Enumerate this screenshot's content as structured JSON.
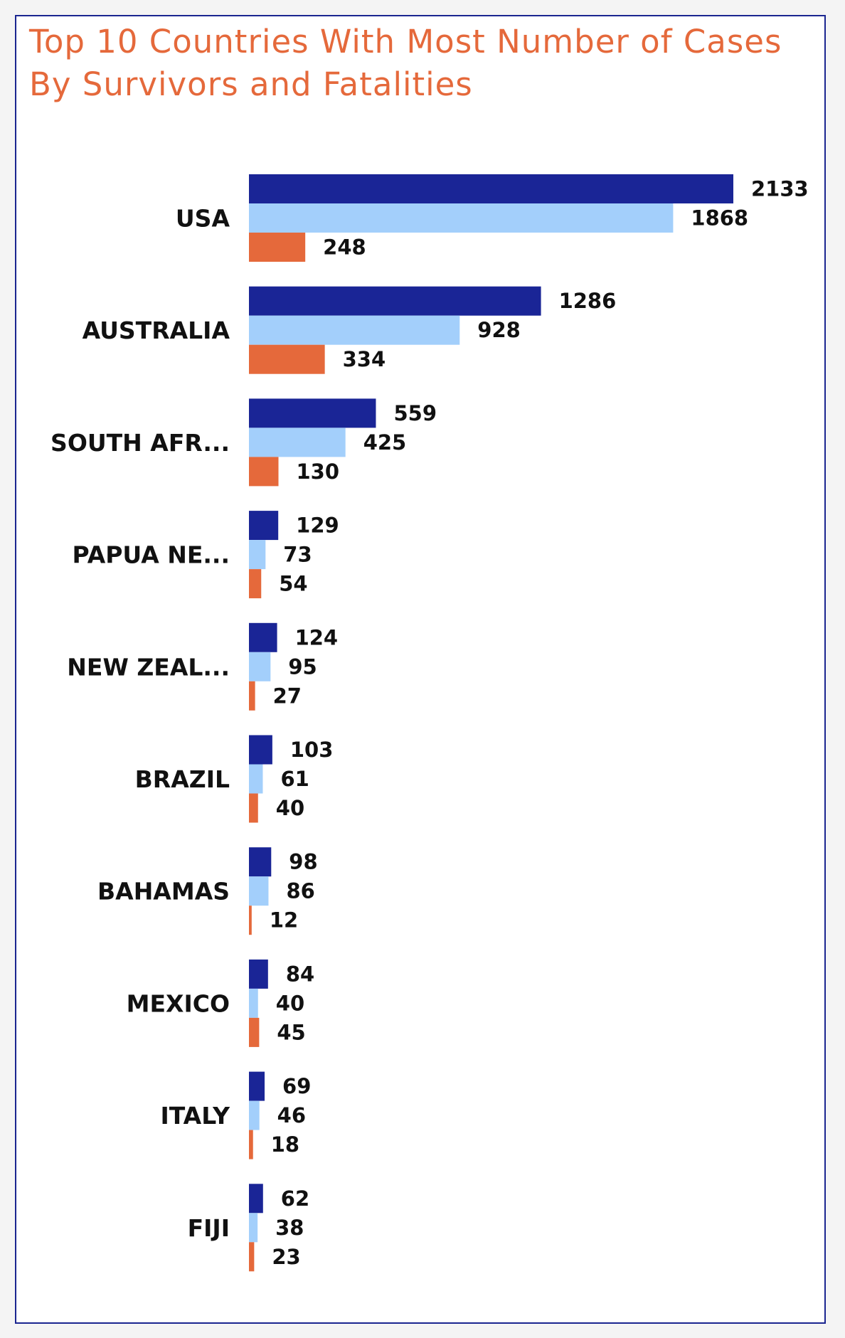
{
  "chart_data": {
    "type": "bar",
    "orientation": "horizontal",
    "title_lines": [
      "Top 10 Countries With Most Number of Cases",
      "By Survivors and Fatalities"
    ],
    "categories": [
      "USA",
      "AUSTRALIA",
      "SOUTH AFR...",
      "PAPUA NE...",
      "NEW ZEAL...",
      "BRAZIL",
      "BAHAMAS",
      "MEXICO",
      "ITALY",
      "FIJI"
    ],
    "series": [
      {
        "color": "#1a2596",
        "values": [
          2133,
          1286,
          559,
          129,
          124,
          103,
          98,
          84,
          69,
          62
        ]
      },
      {
        "color": "#a3cffb",
        "values": [
          1868,
          928,
          425,
          73,
          95,
          61,
          86,
          40,
          46,
          38
        ]
      },
      {
        "color": "#e5693b",
        "values": [
          248,
          334,
          130,
          54,
          27,
          40,
          12,
          45,
          18,
          23
        ]
      }
    ],
    "xlabel": "",
    "ylabel": "",
    "xlim": [
      0,
      2133
    ],
    "grid": false,
    "legend": "none",
    "data_labels": true
  }
}
